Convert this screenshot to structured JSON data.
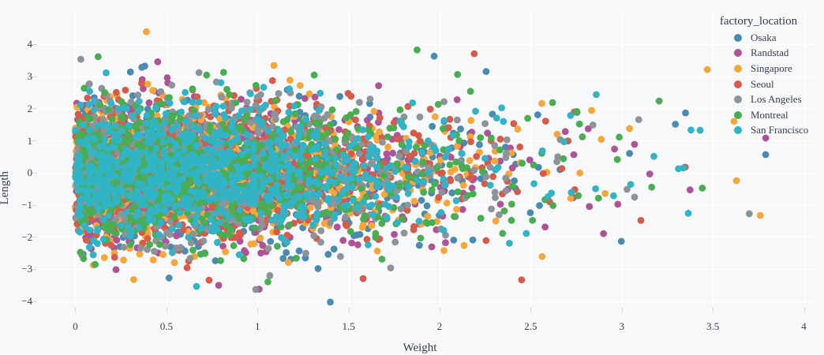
{
  "chart_data": {
    "type": "scatter",
    "title": "",
    "xlabel": "Weight",
    "ylabel": "Length",
    "legend_title": "factory_location",
    "legend_position": "inside-top-right",
    "grid": true,
    "xlim": [
      -0.21,
      4.08
    ],
    "ylim": [
      -4.18,
      5.08
    ],
    "x_ticks": {
      "values": [
        0,
        0.5,
        1,
        1.5,
        2,
        2.5,
        3,
        3.5,
        4
      ],
      "labels": [
        "0",
        "0.5",
        "1",
        "1.5",
        "2",
        "2.5",
        "3",
        "3.5",
        "4"
      ]
    },
    "y_ticks": {
      "values": [
        -4,
        -3,
        -2,
        -1,
        0,
        1,
        2,
        3,
        4
      ],
      "labels": [
        "−4",
        "−3",
        "−2",
        "−1",
        "0",
        "1",
        "2",
        "3",
        "4"
      ]
    },
    "marker": {
      "radius_px": 4.4,
      "opacity": 1
    },
    "colors": {
      "background": "#F7F8F9",
      "gridline": "#FFFFFF",
      "tick": "#D3D8DD",
      "text": "#3A3F45"
    },
    "series": [
      {
        "name": "Osaka",
        "color": "#4A8BB2",
        "n": 800,
        "x_dist": "half-normal",
        "x_sigma": 0.95,
        "y_dist": "normal",
        "y_sigma": 1.05,
        "n_tail": 6,
        "seed": 11
      },
      {
        "name": "Randstad",
        "color": "#AE5397",
        "n": 800,
        "x_dist": "half-normal",
        "x_sigma": 0.95,
        "y_dist": "normal",
        "y_sigma": 1.05,
        "n_tail": 6,
        "seed": 22
      },
      {
        "name": "Singapore",
        "color": "#F7A638",
        "n": 800,
        "x_dist": "half-normal",
        "x_sigma": 0.95,
        "y_dist": "normal",
        "y_sigma": 1.05,
        "n_tail": 6,
        "seed": 33
      },
      {
        "name": "Seoul",
        "color": "#D65B49",
        "n": 800,
        "x_dist": "half-normal",
        "x_sigma": 0.95,
        "y_dist": "normal",
        "y_sigma": 1.05,
        "n_tail": 6,
        "seed": 44
      },
      {
        "name": "Los Angeles",
        "color": "#8C9399",
        "n": 800,
        "x_dist": "half-normal",
        "x_sigma": 0.95,
        "y_dist": "normal",
        "y_sigma": 1.05,
        "n_tail": 6,
        "seed": 55
      },
      {
        "name": "Montreal",
        "color": "#49AD52",
        "n": 800,
        "x_dist": "half-normal",
        "x_sigma": 0.95,
        "y_dist": "normal",
        "y_sigma": 1.05,
        "n_tail": 6,
        "seed": 66
      },
      {
        "name": "San Francisco",
        "color": "#31B4C6",
        "n": 800,
        "x_dist": "half-normal",
        "x_sigma": 0.95,
        "y_dist": "normal",
        "y_sigma": 1.05,
        "n_tail": 6,
        "seed": 77
      }
    ],
    "outlier_points": [
      {
        "series": "Osaka",
        "x": 1.4,
        "y": -4.03
      },
      {
        "series": "Osaka",
        "x": 3.79,
        "y": 0.56
      },
      {
        "series": "Osaka",
        "x": 3.35,
        "y": 1.86
      },
      {
        "series": "Randstad",
        "x": 3.07,
        "y": 0.88
      },
      {
        "series": "Randstad",
        "x": 2.9,
        "y": -1.9
      },
      {
        "series": "Singapore",
        "x": 0.39,
        "y": 4.39
      },
      {
        "series": "Singapore",
        "x": 3.47,
        "y": 3.21
      },
      {
        "series": "Singapore",
        "x": 3.63,
        "y": -0.25
      },
      {
        "series": "Singapore",
        "x": 3.76,
        "y": -1.33
      },
      {
        "series": "Seoul",
        "x": 2.19,
        "y": 3.7
      },
      {
        "series": "Seoul",
        "x": 1.58,
        "y": -3.3
      },
      {
        "series": "Los Angeles",
        "x": 0.03,
        "y": 3.53
      },
      {
        "series": "Los Angeles",
        "x": 0.99,
        "y": -3.64
      },
      {
        "series": "Los Angeles",
        "x": 3.7,
        "y": -1.28
      },
      {
        "series": "Montreal",
        "x": 2.62,
        "y": 2.18
      },
      {
        "series": "San Francisco",
        "x": 3.43,
        "y": 1.32
      },
      {
        "series": "San Francisco",
        "x": 2.86,
        "y": 2.43
      }
    ]
  }
}
